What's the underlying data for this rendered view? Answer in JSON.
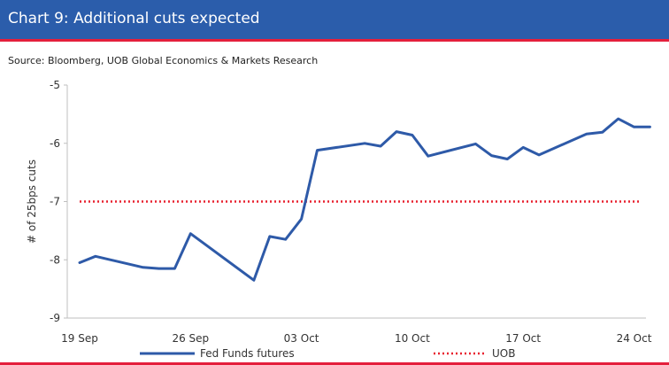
{
  "header": {
    "title": "Chart 9: Additional cuts expected"
  },
  "source": "Source: Bloomberg, UOB Global Economics & Markets Research",
  "colors": {
    "header_bg": "#2b5dab",
    "rule": "#e41f3c",
    "series_line": "#2e5aa8",
    "uob_line": "#e8212f"
  },
  "chart_data": {
    "type": "line",
    "ylabel": "# of 25bps cuts",
    "ylim": [
      -9,
      -5
    ],
    "yticks": [
      -5,
      -6,
      -7,
      -8,
      -9
    ],
    "xticks": [
      "19 Sep",
      "26 Sep",
      "03 Oct",
      "10 Oct",
      "17 Oct",
      "24 Oct"
    ],
    "grid": false,
    "legend_position": "bottom",
    "series": [
      {
        "name": "Fed Funds futures",
        "style": "solid",
        "color": "#2e5aa8",
        "x": [
          "2024-09-19",
          "2024-09-20",
          "2024-09-23",
          "2024-09-24",
          "2024-09-25",
          "2024-09-26",
          "2024-09-27",
          "2024-09-30",
          "2024-10-01",
          "2024-10-02",
          "2024-10-03",
          "2024-10-04",
          "2024-10-07",
          "2024-10-08",
          "2024-10-09",
          "2024-10-10",
          "2024-10-11",
          "2024-10-14",
          "2024-10-15",
          "2024-10-16",
          "2024-10-17",
          "2024-10-18",
          "2024-10-21",
          "2024-10-22",
          "2024-10-23",
          "2024-10-24",
          "2024-10-25"
        ],
        "y": [
          -8.05,
          -7.94,
          -8.13,
          -8.15,
          -8.15,
          -7.55,
          -7.75,
          -8.35,
          -7.6,
          -7.65,
          -7.3,
          -6.12,
          -6.0,
          -6.05,
          -5.8,
          -5.86,
          -6.22,
          -6.01,
          -6.21,
          -6.27,
          -6.07,
          -6.2,
          -5.84,
          -5.81,
          -5.58,
          -5.72,
          -5.72
        ]
      },
      {
        "name": "UOB",
        "style": "dotted",
        "color": "#e8212f",
        "y": -7
      }
    ]
  }
}
